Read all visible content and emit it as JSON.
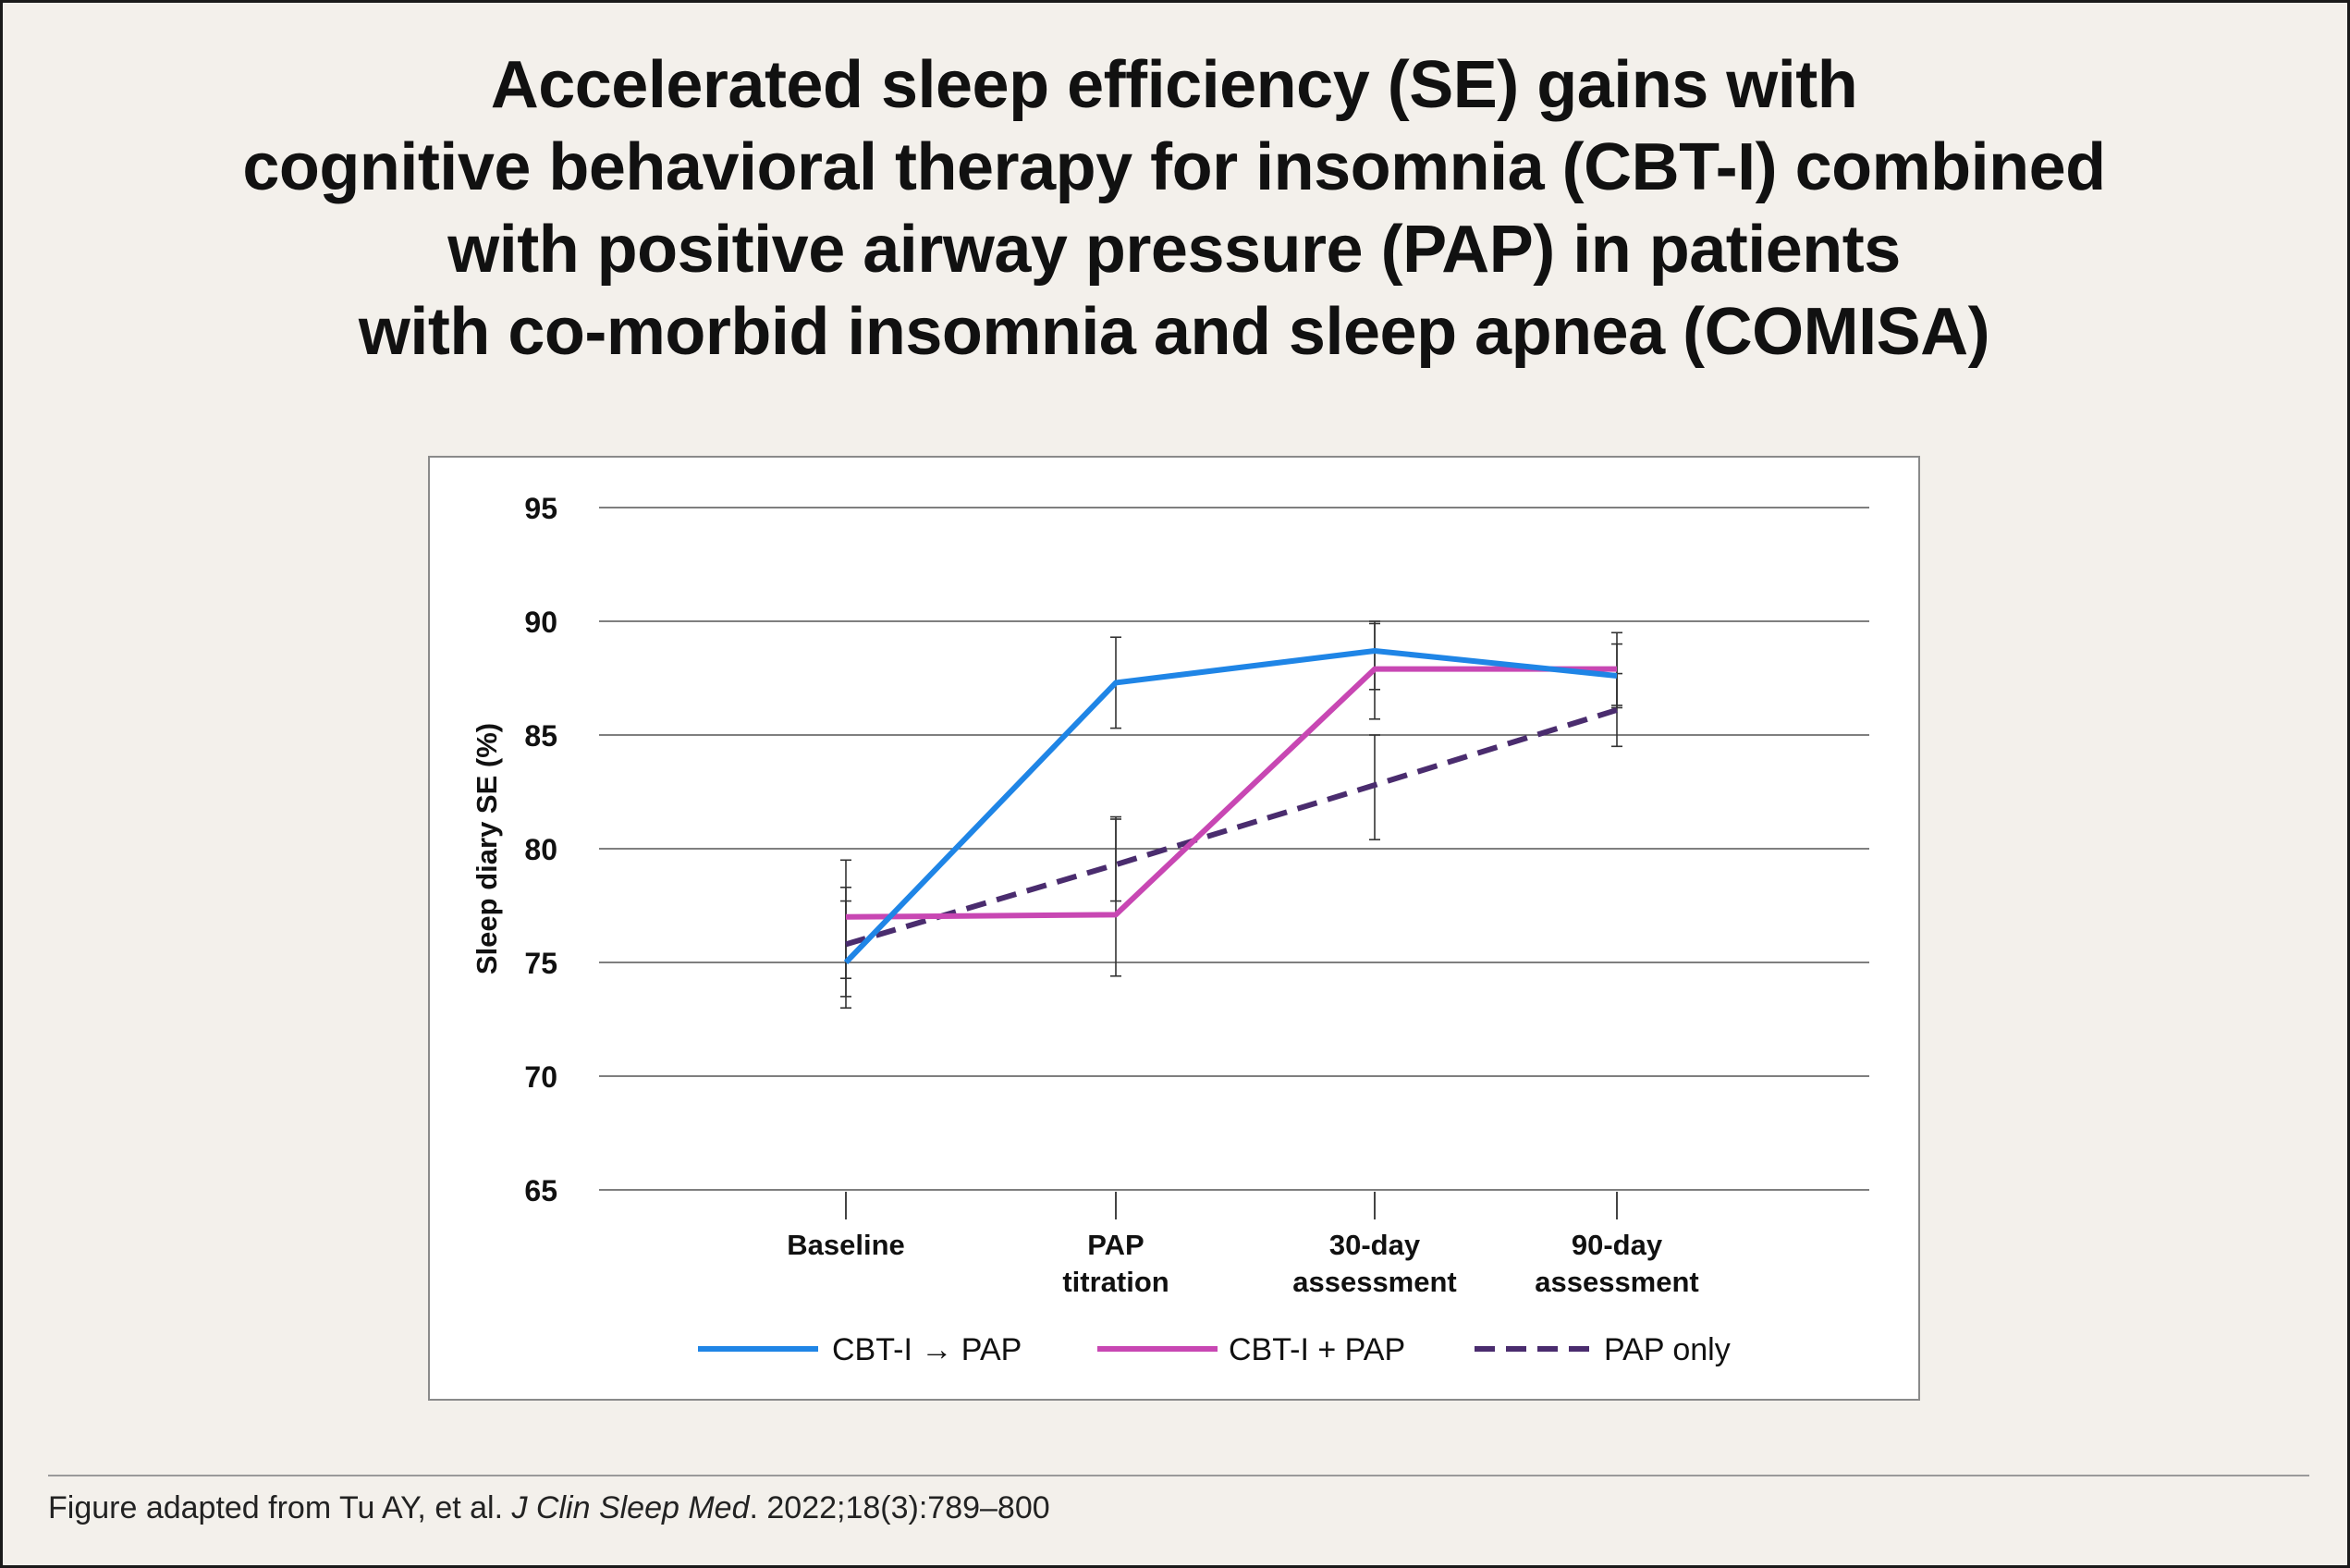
{
  "title_lines": [
    "Accelerated sleep efficiency (SE) gains with",
    "cognitive behavioral therapy for insomnia (CBT-I) combined",
    "with positive airway pressure (PAP) in patients",
    "with co-morbid insomnia and sleep apnea (COMISA)"
  ],
  "source": {
    "prefix": "Figure adapted from Tu AY, et al. ",
    "journal": "J Clin Sleep Med",
    "suffix": ". 2022;18(3):789–800"
  },
  "chart_data": {
    "type": "line",
    "ylabel": "Sleep diary SE (%)",
    "xlabel": "",
    "ylim": [
      65,
      95
    ],
    "yticks": [
      95,
      90,
      85,
      80,
      75,
      70,
      65
    ],
    "grid": true,
    "legend_position": "bottom",
    "categories": [
      [
        "Baseline"
      ],
      [
        "PAP",
        "titration"
      ],
      [
        "30-day",
        "assessment"
      ],
      [
        "90-day",
        "assessment"
      ]
    ],
    "series": [
      {
        "name": "CBT-I → PAP",
        "color": "#1f85e6",
        "dashed": false,
        "values": [
          75.0,
          87.3,
          88.7,
          87.6
        ],
        "error_low": [
          73.5,
          85.3,
          87.0,
          86.2
        ],
        "error_high": [
          78.3,
          89.3,
          90.0,
          89.0
        ]
      },
      {
        "name": "CBT-I + PAP",
        "color": "#c847b3",
        "dashed": false,
        "values": [
          77.0,
          77.1,
          87.9,
          87.9
        ],
        "error_low": [
          74.3,
          74.4,
          85.7,
          86.3
        ],
        "error_high": [
          79.5,
          81.4,
          89.9,
          89.5
        ]
      },
      {
        "name": "PAP only",
        "color": "#4a2c6e",
        "dashed": true,
        "values": [
          75.8,
          79.3,
          82.8,
          86.1
        ],
        "error_low": [
          73.0,
          77.7,
          80.4,
          84.5
        ],
        "error_high": [
          77.7,
          81.3,
          85.0,
          87.7
        ]
      }
    ]
  }
}
